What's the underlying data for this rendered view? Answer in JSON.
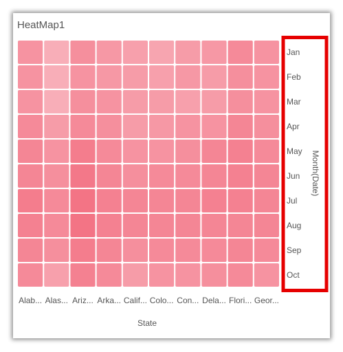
{
  "title": "HeatMap1",
  "chart_data": {
    "type": "heatmap",
    "title": "HeatMap1",
    "xlabel": "State",
    "ylabel": "Month(Date)",
    "x_categories": [
      "Alab...",
      "Alas...",
      "Ariz...",
      "Arka...",
      "Calif...",
      "Colo...",
      "Con...",
      "Dela...",
      "Flori...",
      "Geor..."
    ],
    "y_categories": [
      "Jan",
      "Feb",
      "Mar",
      "Apr",
      "May",
      "Jun",
      "Jul",
      "Aug",
      "Sep",
      "Oct"
    ],
    "values": [
      [
        0.55,
        0.25,
        0.6,
        0.5,
        0.4,
        0.35,
        0.45,
        0.5,
        0.65,
        0.55
      ],
      [
        0.55,
        0.25,
        0.55,
        0.5,
        0.45,
        0.4,
        0.5,
        0.45,
        0.6,
        0.55
      ],
      [
        0.55,
        0.25,
        0.6,
        0.55,
        0.45,
        0.45,
        0.4,
        0.45,
        0.6,
        0.55
      ],
      [
        0.65,
        0.45,
        0.65,
        0.6,
        0.45,
        0.5,
        0.55,
        0.55,
        0.7,
        0.6
      ],
      [
        0.7,
        0.55,
        0.8,
        0.65,
        0.55,
        0.55,
        0.6,
        0.7,
        0.75,
        0.65
      ],
      [
        0.7,
        0.6,
        0.85,
        0.7,
        0.6,
        0.65,
        0.65,
        0.7,
        0.75,
        0.7
      ],
      [
        0.8,
        0.65,
        0.9,
        0.75,
        0.7,
        0.7,
        0.7,
        0.75,
        0.75,
        0.7
      ],
      [
        0.75,
        0.65,
        0.9,
        0.75,
        0.7,
        0.7,
        0.7,
        0.7,
        0.7,
        0.7
      ],
      [
        0.7,
        0.6,
        0.8,
        0.7,
        0.6,
        0.65,
        0.65,
        0.65,
        0.7,
        0.65
      ],
      [
        0.65,
        0.4,
        0.75,
        0.65,
        0.45,
        0.55,
        0.55,
        0.6,
        0.65,
        0.55
      ]
    ],
    "color_low": "#fac4cc",
    "color_high": "#f26b7d",
    "legend": "none",
    "highlight_color": "#e60000"
  }
}
